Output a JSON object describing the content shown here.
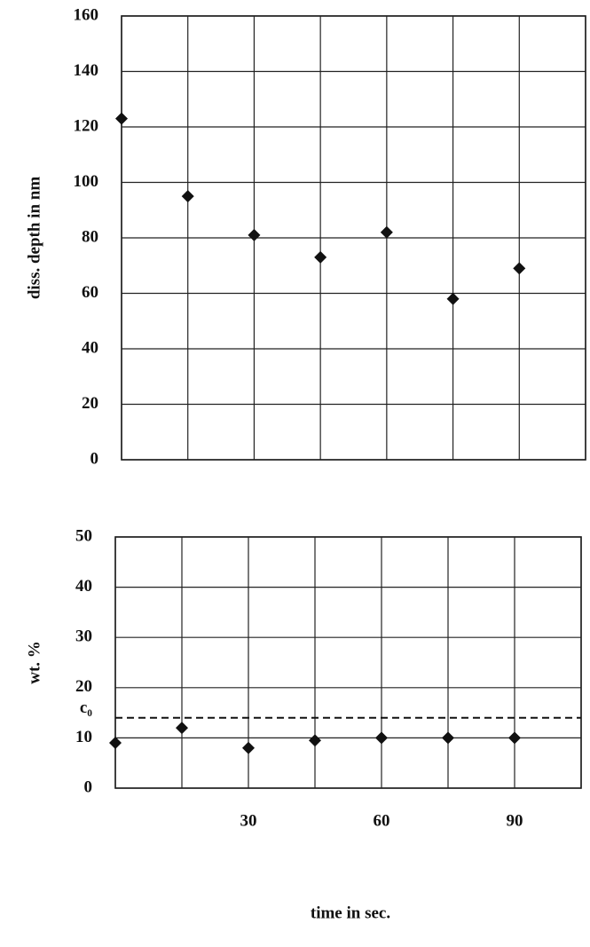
{
  "chart_data": [
    {
      "type": "scatter",
      "ylabel": "diss. depth in nm",
      "x": [
        0,
        15,
        30,
        45,
        60,
        75,
        90
      ],
      "values": [
        123,
        95,
        81,
        73,
        82,
        58,
        69
      ],
      "color": "#111111",
      "xlim": [
        0,
        105
      ],
      "ylim": [
        0,
        160
      ],
      "yticks": [
        0,
        20,
        40,
        60,
        80,
        100,
        120,
        140,
        160
      ],
      "grid": true
    },
    {
      "type": "scatter",
      "ylabel": "wt. %",
      "xlabel": "time in sec.",
      "x": [
        0,
        15,
        30,
        45,
        60,
        75,
        90
      ],
      "values": [
        9,
        12,
        8,
        9.5,
        10,
        10,
        10
      ],
      "color": "#111111",
      "xlim": [
        0,
        105
      ],
      "ylim": [
        0,
        50
      ],
      "yticks": [
        0,
        10,
        20,
        30,
        40,
        50
      ],
      "xticks": [
        30,
        60,
        90
      ],
      "grid": true,
      "reference_line": {
        "value": 14,
        "label": "c₀"
      }
    }
  ]
}
